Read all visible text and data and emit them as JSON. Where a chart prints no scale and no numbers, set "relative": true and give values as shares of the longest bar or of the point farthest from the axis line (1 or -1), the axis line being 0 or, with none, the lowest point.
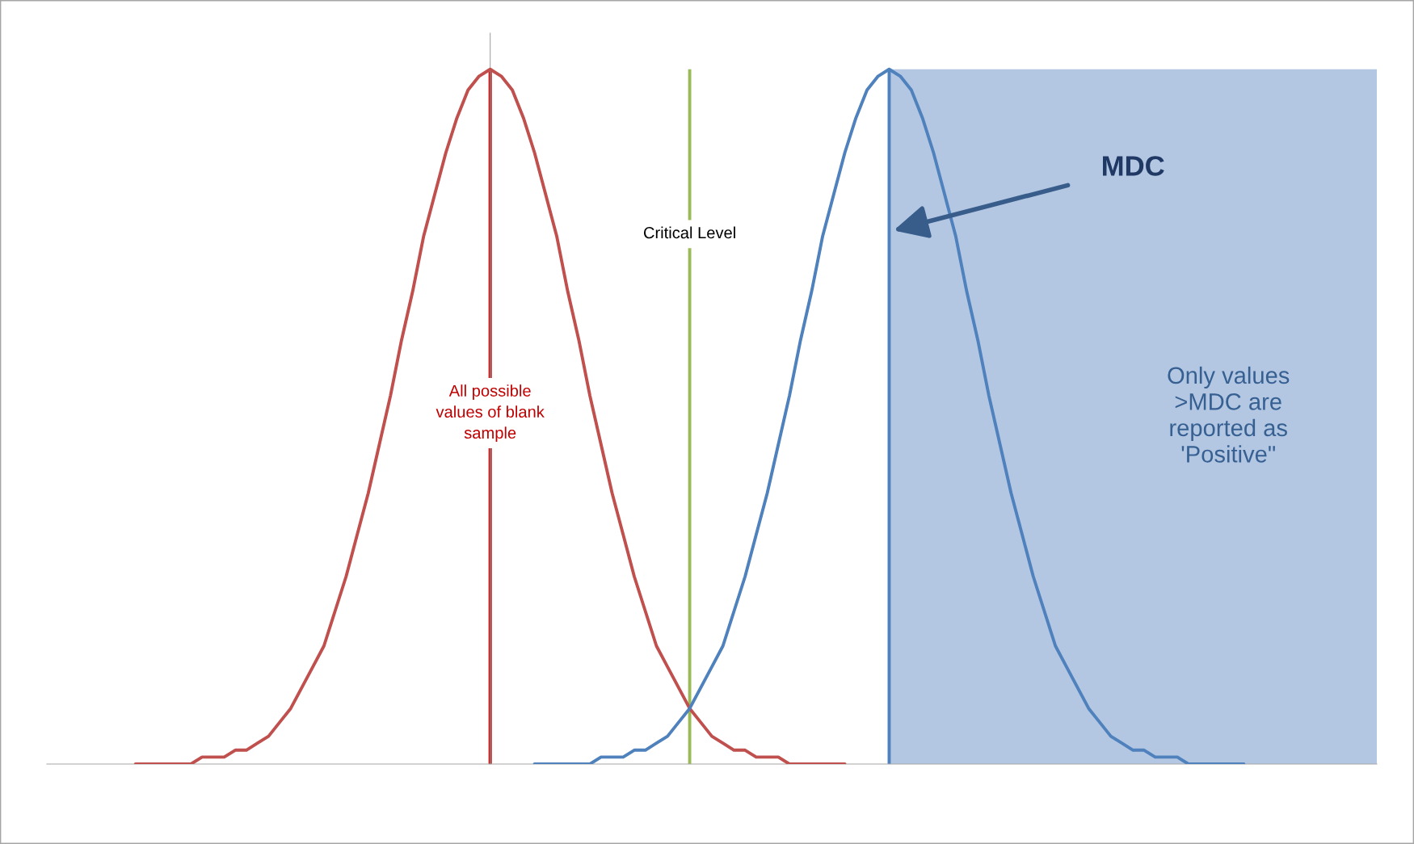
{
  "chart_data": {
    "type": "line",
    "relative": true,
    "categories": [
      null,
      null,
      null,
      null,
      null,
      null,
      null,
      null,
      null,
      null,
      null,
      null,
      null,
      null,
      null,
      null,
      null,
      null,
      null,
      null,
      null,
      null,
      null,
      null,
      null,
      null,
      null,
      null,
      null,
      null,
      null,
      null,
      null,
      null,
      null,
      null,
      null,
      null,
      null,
      null,
      null,
      null,
      null,
      null,
      null,
      null,
      null,
      null,
      null,
      null,
      null,
      null,
      null,
      null,
      null,
      null,
      null,
      null,
      null,
      null,
      null,
      null,
      null,
      null,
      null,
      null,
      null,
      null,
      null,
      null,
      null,
      null,
      null,
      null,
      null,
      null,
      null,
      null,
      null,
      null,
      null,
      null,
      null,
      null,
      null,
      null,
      null,
      null,
      null,
      null,
      null,
      null,
      null,
      null,
      null,
      null,
      null,
      null,
      null,
      null,
      null,
      null,
      null,
      null,
      null,
      null,
      null,
      null,
      null,
      null,
      null,
      null,
      null,
      null,
      null,
      null,
      null,
      null,
      null,
      null,
      null
    ],
    "series": [
      {
        "color": "#c0504d",
        "values": [
          null,
          null,
          null,
          null,
          null,
          null,
          null,
          null,
          0,
          0,
          0,
          0,
          0,
          0,
          0.01,
          0.01,
          0.01,
          0.02,
          0.02,
          0.03,
          0.04,
          0.06,
          0.08,
          0.11,
          0.14,
          0.17,
          0.22,
          0.27,
          0.33,
          0.39,
          0.46,
          0.53,
          0.61,
          0.68,
          0.76,
          0.82,
          0.88,
          0.93,
          0.97,
          0.99,
          1,
          0.99,
          0.97,
          0.93,
          0.88,
          0.82,
          0.76,
          0.68,
          0.61,
          0.53,
          0.46,
          0.39,
          0.33,
          0.27,
          0.22,
          0.17,
          0.14,
          0.11,
          0.08,
          0.06,
          0.04,
          0.03,
          0.02,
          0.02,
          0.01,
          0.01,
          0.01,
          0,
          0,
          0,
          0,
          0,
          0,
          null,
          null,
          null,
          null,
          null,
          null,
          null,
          null,
          null,
          null,
          null,
          null,
          null,
          null,
          null,
          null,
          null,
          null,
          null,
          null,
          null,
          null,
          null,
          null,
          null,
          null,
          null,
          null,
          null,
          null,
          null,
          null,
          null,
          null,
          null,
          null,
          null,
          null,
          null,
          null,
          null,
          null,
          null,
          null,
          null,
          null,
          null,
          null
        ]
      },
      {
        "color": "#4f81bd",
        "values": [
          null,
          null,
          null,
          null,
          null,
          null,
          null,
          null,
          null,
          null,
          null,
          null,
          null,
          null,
          null,
          null,
          null,
          null,
          null,
          null,
          null,
          null,
          null,
          null,
          null,
          null,
          null,
          null,
          null,
          null,
          null,
          null,
          null,
          null,
          null,
          null,
          null,
          null,
          null,
          null,
          null,
          null,
          null,
          null,
          0,
          0,
          0,
          0,
          0,
          0,
          0.01,
          0.01,
          0.01,
          0.02,
          0.02,
          0.03,
          0.04,
          0.06,
          0.08,
          0.11,
          0.14,
          0.17,
          0.22,
          0.27,
          0.33,
          0.39,
          0.46,
          0.53,
          0.61,
          0.68,
          0.76,
          0.82,
          0.88,
          0.93,
          0.97,
          0.99,
          1,
          0.99,
          0.97,
          0.93,
          0.88,
          0.82,
          0.76,
          0.68,
          0.61,
          0.53,
          0.46,
          0.39,
          0.33,
          0.27,
          0.22,
          0.17,
          0.14,
          0.11,
          0.08,
          0.06,
          0.04,
          0.03,
          0.02,
          0.02,
          0.01,
          0.01,
          0.01,
          0,
          0,
          0,
          0,
          0,
          0,
          null,
          null,
          null,
          null,
          null,
          null,
          null,
          null,
          null,
          null,
          null,
          null
        ]
      }
    ],
    "annotations": [
      "All possible\nvalues of blank\nsample",
      "Critical Level",
      "MDC",
      "Only values\n>MDC are\nreported as\n'Positive\""
    ]
  }
}
